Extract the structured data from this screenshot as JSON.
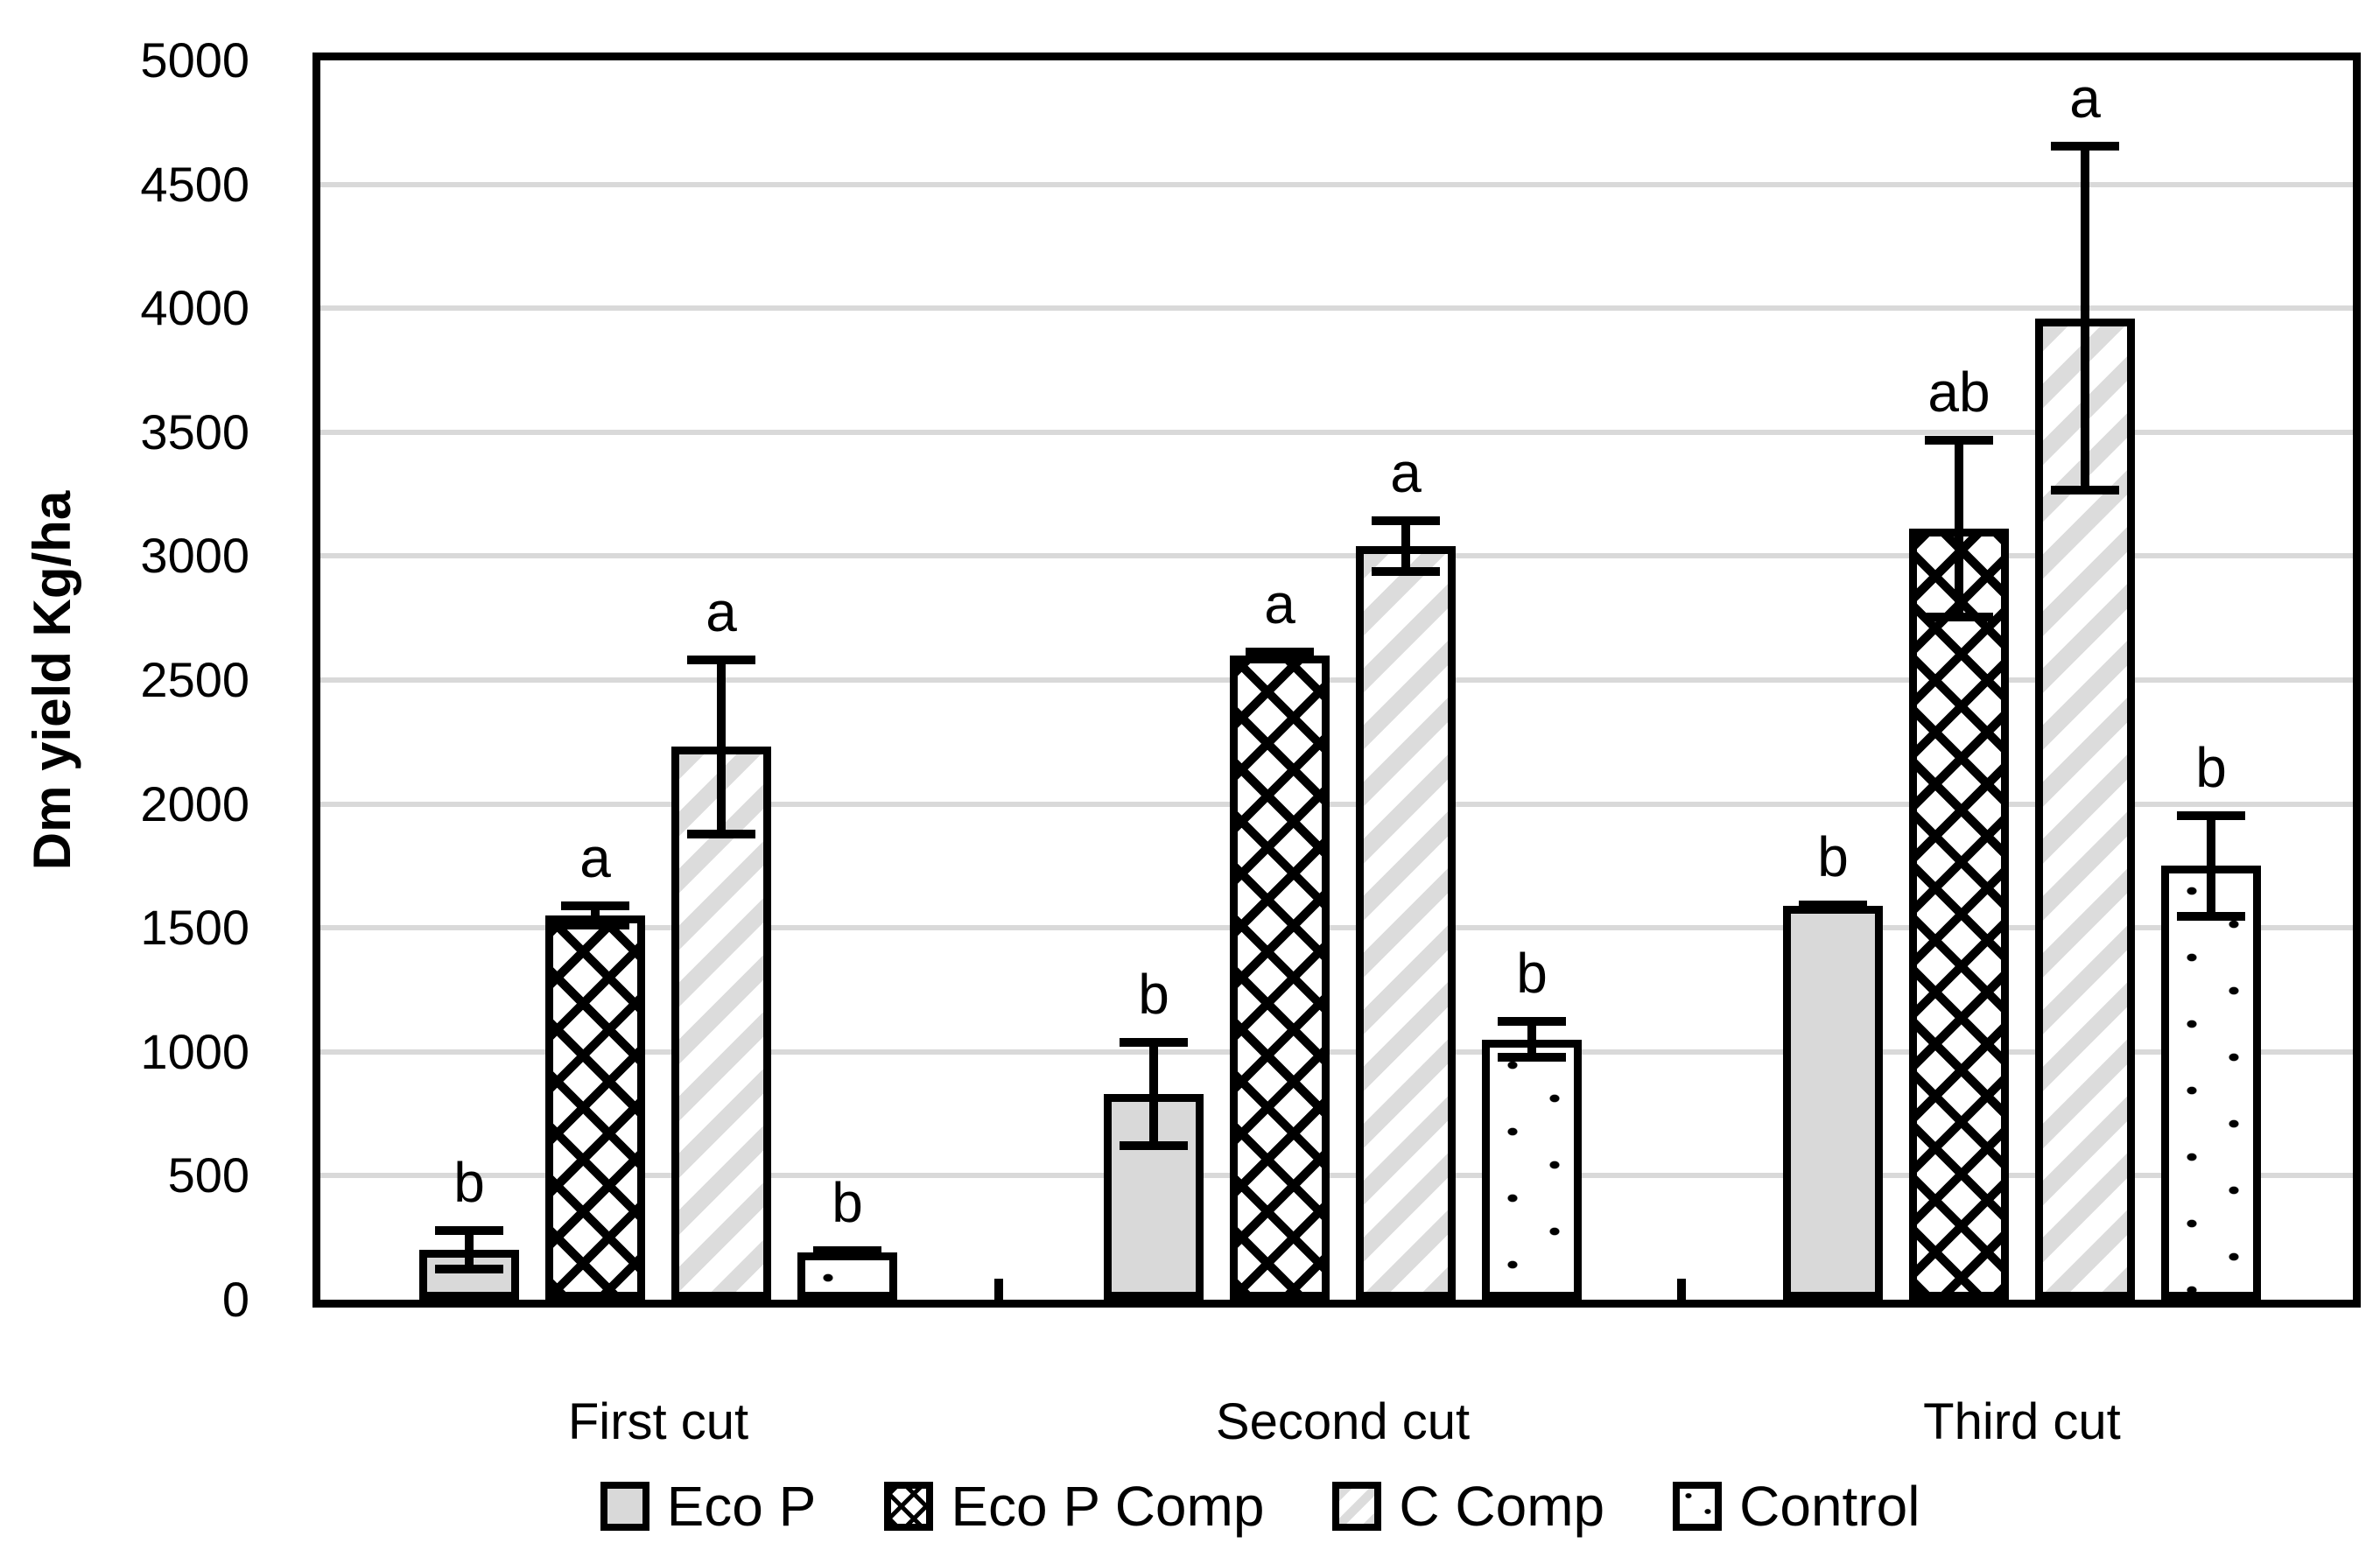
{
  "chart_data": {
    "type": "bar",
    "title": "",
    "xlabel": "",
    "ylabel": "Dm yield Kg/ha",
    "ylim": [
      0,
      5000
    ],
    "yticks": [
      0,
      500,
      1000,
      1500,
      2000,
      2500,
      3000,
      3500,
      4000,
      4500,
      5000
    ],
    "grid": true,
    "legend_position": "bottom",
    "categories": [
      "First cut",
      "Second cut",
      "Third cut"
    ],
    "series": [
      {
        "name": "Eco P",
        "pattern": "solid-gray",
        "values": [
          200,
          830,
          1590
        ],
        "errors": [
          95,
          225,
          20
        ],
        "sig_letters": [
          "b",
          "b",
          "b"
        ]
      },
      {
        "name": "Eco P Comp",
        "pattern": "black-crosshatch",
        "values": [
          1550,
          2600,
          3110
        ],
        "errors": [
          55,
          30,
          375
        ],
        "sig_letters": [
          "a",
          "a",
          "ab"
        ]
      },
      {
        "name": "C Comp",
        "pattern": "gray-diagonal-stripes",
        "values": [
          2230,
          3040,
          3960
        ],
        "errors": [
          370,
          120,
          710
        ],
        "sig_letters": [
          "a",
          "a",
          "a"
        ]
      },
      {
        "name": "Control",
        "pattern": "black-dots",
        "values": [
          190,
          1050,
          1750
        ],
        "errors": [
          25,
          90,
          220
        ],
        "sig_letters": [
          "b",
          "b",
          "b"
        ]
      }
    ],
    "colors": {
      "bar_fill_gray": "#d9d9d9",
      "stripe_gray": "#dcdcdc",
      "pattern_black": "#000000",
      "gridline": "#d9d9d9",
      "background": "#ffffff"
    }
  }
}
